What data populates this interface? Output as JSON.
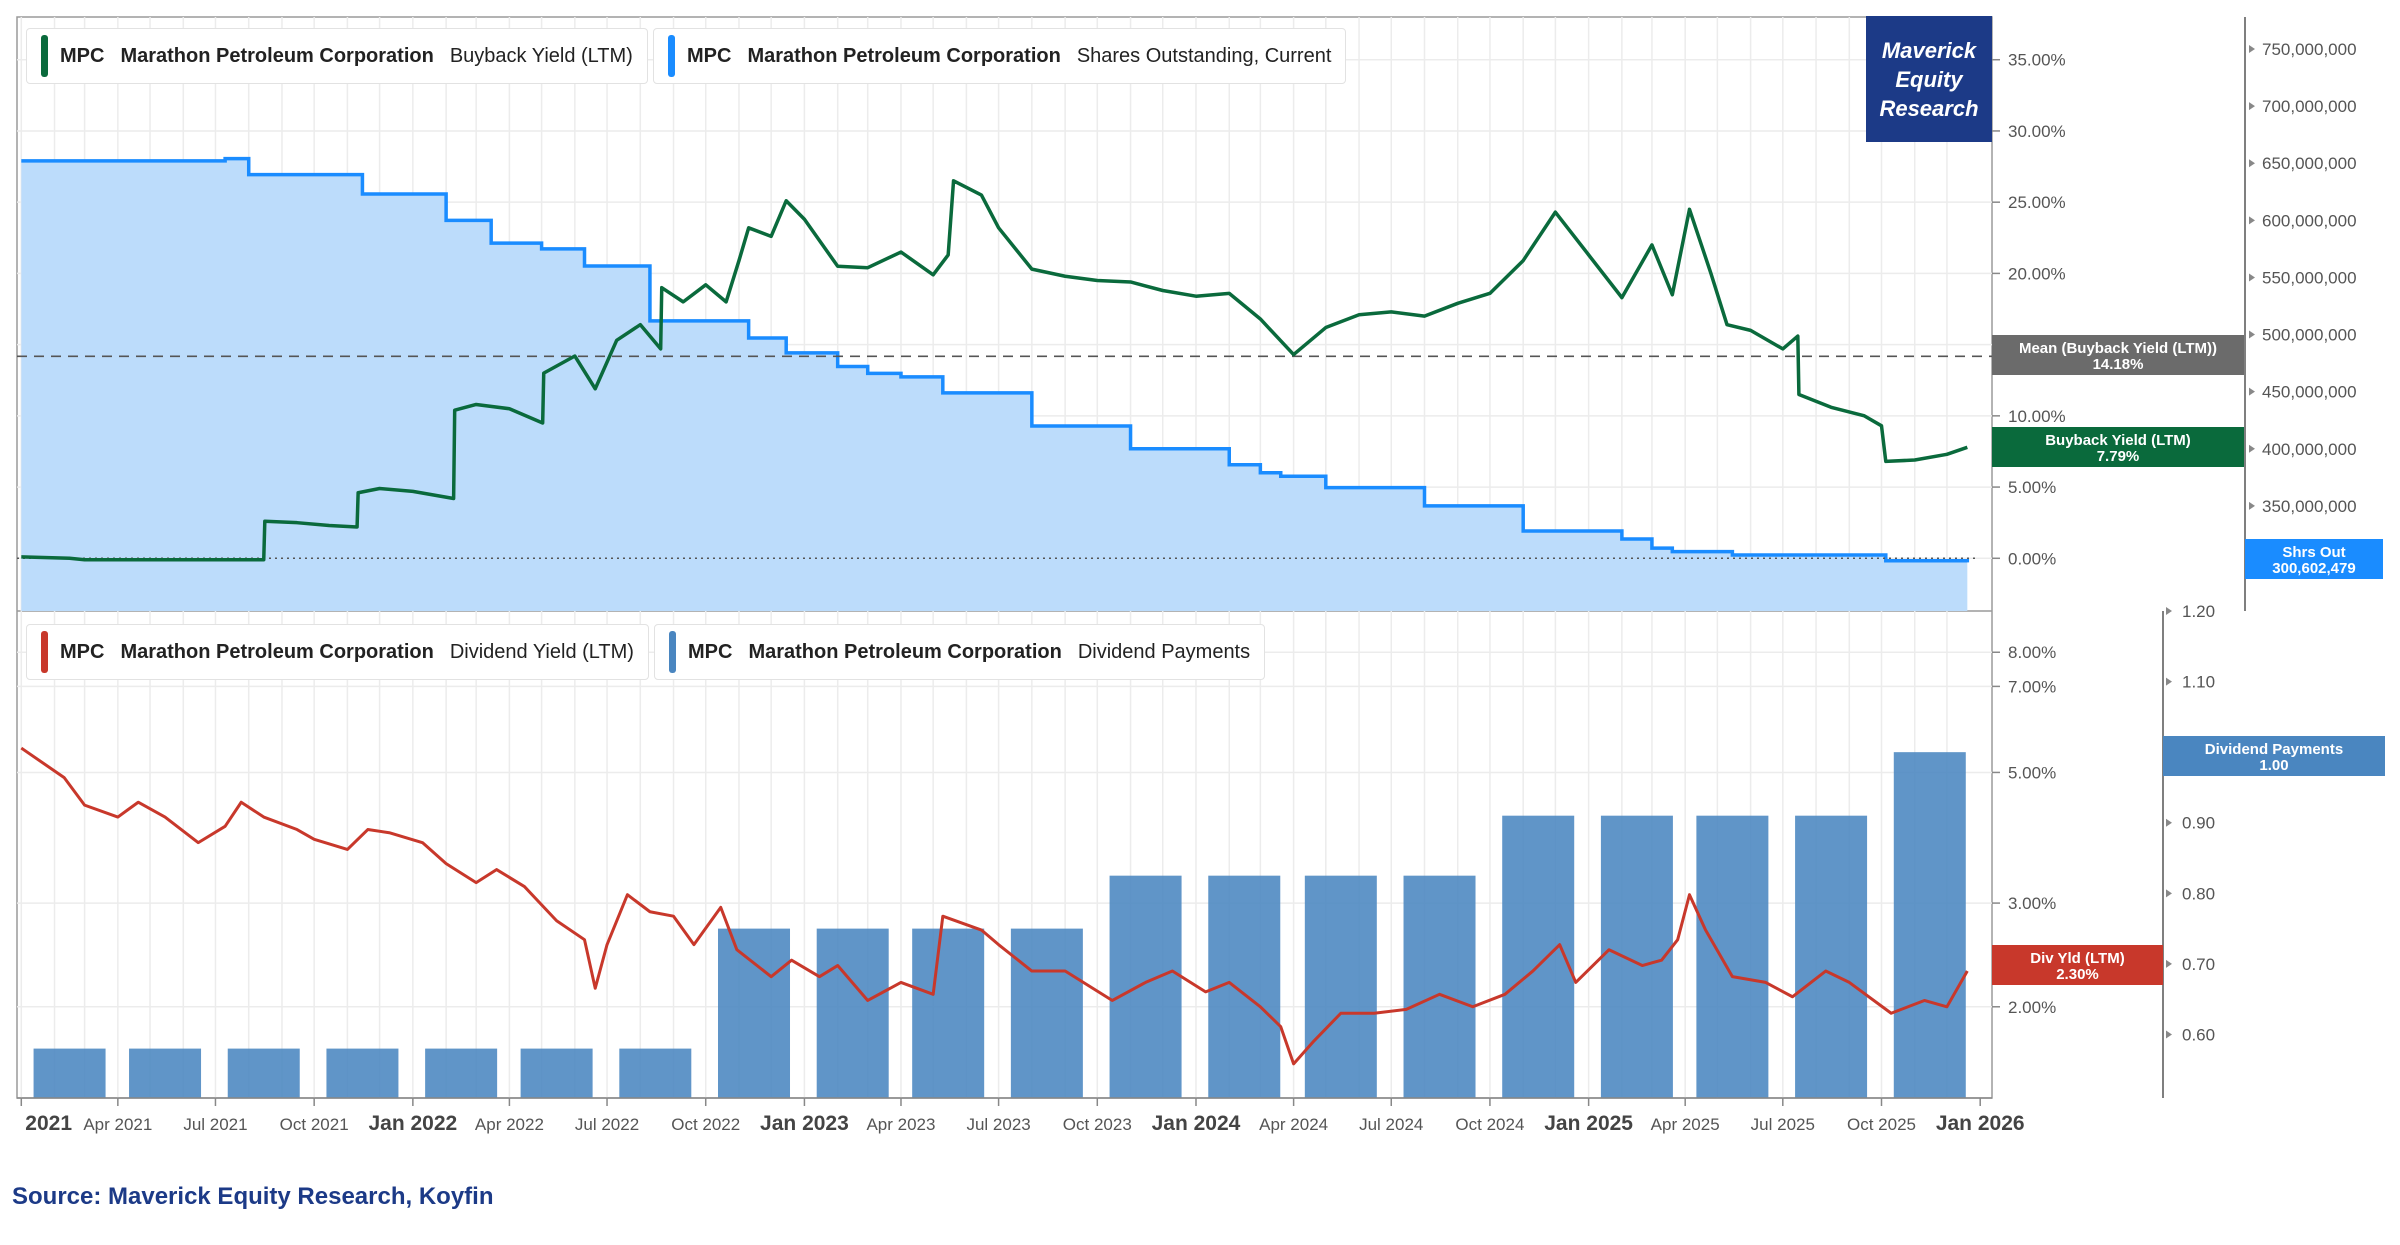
{
  "brand": {
    "line1": "Maverick",
    "line2": "Equity",
    "line3": "Research"
  },
  "source": "Source: Maverick Equity Research, Koyfin",
  "colors": {
    "buyback": "#0a6a3c",
    "shares": "#1a8cff",
    "shares_fill": "#bcdcfb",
    "dividend_yield": "#c8382b",
    "dividend_payments": "#4a86c0",
    "mean": "#6b6b6b",
    "brand": "#1c3a87"
  },
  "legends": {
    "top_left": {
      "ticker": "MPC",
      "company": "Marathon Petroleum Corporation",
      "metric": "Buyback Yield (LTM)"
    },
    "top_right": {
      "ticker": "MPC",
      "company": "Marathon Petroleum Corporation",
      "metric": "Shares Outstanding, Current"
    },
    "bottom_left": {
      "ticker": "MPC",
      "company": "Marathon Petroleum Corporation",
      "metric": "Dividend Yield (LTM)"
    },
    "bottom_right": {
      "ticker": "MPC",
      "company": "Marathon Petroleum Corporation",
      "metric": "Dividend Payments"
    }
  },
  "chart_data": [
    {
      "type": "line",
      "panel": "top",
      "x_axis_labels": [
        "2021",
        "Apr 2021",
        "Jul 2021",
        "Oct 2021",
        "Jan 2022",
        "Apr 2022",
        "Jul 2022",
        "Oct 2022",
        "Jan 2023",
        "Apr 2023",
        "Jul 2023",
        "Oct 2023",
        "Jan 2024",
        "Apr 2024",
        "Jul 2024",
        "Oct 2024",
        "Jan 2025",
        "Apr 2025",
        "Jul 2025",
        "Oct 2025",
        "Jan 2026"
      ],
      "bold_x_labels": [
        "2021",
        "Jan 2022",
        "Jan 2023",
        "Jan 2024",
        "Jan 2025",
        "Jan 2026"
      ],
      "grid": true,
      "series": [
        {
          "name": "Buyback Yield (LTM)",
          "axis": "left-percent",
          "unit": "%",
          "points": [
            [
              "2021-01-01",
              0.1
            ],
            [
              "2021-02-15",
              0.0
            ],
            [
              "2021-03-01",
              -0.1
            ],
            [
              "2021-05-01",
              -0.1
            ],
            [
              "2021-07-01",
              -0.1
            ],
            [
              "2021-08-15",
              -0.1
            ],
            [
              "2021-08-16",
              2.6
            ],
            [
              "2021-09-15",
              2.5
            ],
            [
              "2021-10-15",
              2.3
            ],
            [
              "2021-11-10",
              2.2
            ],
            [
              "2021-11-11",
              4.6
            ],
            [
              "2021-12-01",
              4.9
            ],
            [
              "2022-01-01",
              4.7
            ],
            [
              "2022-02-08",
              4.2
            ],
            [
              "2022-02-09",
              10.4
            ],
            [
              "2022-03-01",
              10.8
            ],
            [
              "2022-04-01",
              10.5
            ],
            [
              "2022-05-02",
              9.5
            ],
            [
              "2022-05-03",
              13.0
            ],
            [
              "2022-06-01",
              14.2
            ],
            [
              "2022-06-20",
              11.9
            ],
            [
              "2022-07-10",
              15.3
            ],
            [
              "2022-08-01",
              16.4
            ],
            [
              "2022-08-20",
              14.7
            ],
            [
              "2022-08-21",
              19.0
            ],
            [
              "2022-09-10",
              18.0
            ],
            [
              "2022-10-01",
              19.2
            ],
            [
              "2022-10-20",
              18.0
            ],
            [
              "2022-11-01",
              20.9
            ],
            [
              "2022-11-10",
              23.2
            ],
            [
              "2022-12-01",
              22.6
            ],
            [
              "2022-12-15",
              25.1
            ],
            [
              "2023-01-01",
              23.8
            ],
            [
              "2023-02-01",
              20.5
            ],
            [
              "2023-03-01",
              20.4
            ],
            [
              "2023-04-01",
              21.5
            ],
            [
              "2023-05-01",
              19.9
            ],
            [
              "2023-05-15",
              21.3
            ],
            [
              "2023-05-20",
              26.5
            ],
            [
              "2023-06-15",
              25.5
            ],
            [
              "2023-07-01",
              23.2
            ],
            [
              "2023-08-01",
              20.3
            ],
            [
              "2023-09-01",
              19.8
            ],
            [
              "2023-10-01",
              19.5
            ],
            [
              "2023-11-01",
              19.4
            ],
            [
              "2023-12-01",
              18.8
            ],
            [
              "2024-01-01",
              18.4
            ],
            [
              "2024-02-01",
              18.6
            ],
            [
              "2024-03-01",
              16.8
            ],
            [
              "2024-04-01",
              14.3
            ],
            [
              "2024-05-01",
              16.2
            ],
            [
              "2024-06-01",
              17.1
            ],
            [
              "2024-07-01",
              17.3
            ],
            [
              "2024-08-01",
              17.0
            ],
            [
              "2024-09-01",
              17.9
            ],
            [
              "2024-10-01",
              18.6
            ],
            [
              "2024-11-01",
              20.9
            ],
            [
              "2024-12-01",
              24.3
            ],
            [
              "2025-01-01",
              21.3
            ],
            [
              "2025-02-01",
              18.3
            ],
            [
              "2025-03-01",
              22.0
            ],
            [
              "2025-03-20",
              18.5
            ],
            [
              "2025-04-05",
              24.5
            ],
            [
              "2025-04-25",
              20.0
            ],
            [
              "2025-05-10",
              16.4
            ],
            [
              "2025-06-01",
              16.0
            ],
            [
              "2025-07-01",
              14.7
            ],
            [
              "2025-07-15",
              15.6
            ],
            [
              "2025-07-16",
              11.5
            ],
            [
              "2025-08-15",
              10.6
            ],
            [
              "2025-09-15",
              10.0
            ],
            [
              "2025-10-01",
              9.3
            ],
            [
              "2025-10-05",
              6.8
            ],
            [
              "2025-11-01",
              6.9
            ],
            [
              "2025-12-01",
              7.3
            ],
            [
              "2025-12-20",
              7.79
            ]
          ]
        },
        {
          "name": "Shares Outstanding, Current",
          "axis": "right-shares",
          "unit": "shares",
          "step": true,
          "points": [
            [
              "2021-01-01",
              652000000
            ],
            [
              "2021-07-10",
              654000000
            ],
            [
              "2021-08-01",
              640000000
            ],
            [
              "2021-11-15",
              623000000
            ],
            [
              "2022-02-01",
              600000000
            ],
            [
              "2022-03-15",
              580000000
            ],
            [
              "2022-05-01",
              575000000
            ],
            [
              "2022-06-10",
              560000000
            ],
            [
              "2022-08-10",
              512000000
            ],
            [
              "2022-11-10",
              497000000
            ],
            [
              "2022-12-15",
              484000000
            ],
            [
              "2023-02-01",
              472000000
            ],
            [
              "2023-03-01",
              466000000
            ],
            [
              "2023-04-01",
              463000000
            ],
            [
              "2023-05-10",
              449000000
            ],
            [
              "2023-08-01",
              420000000
            ],
            [
              "2023-11-01",
              400000000
            ],
            [
              "2024-02-01",
              386000000
            ],
            [
              "2024-03-01",
              379000000
            ],
            [
              "2024-03-20",
              376000000
            ],
            [
              "2024-05-01",
              366000000
            ],
            [
              "2024-08-01",
              350000000
            ],
            [
              "2024-11-01",
              328000000
            ],
            [
              "2025-02-01",
              321000000
            ],
            [
              "2025-03-01",
              313000000
            ],
            [
              "2025-03-20",
              310000000
            ],
            [
              "2025-05-15",
              307000000
            ],
            [
              "2025-10-05",
              302000000
            ],
            [
              "2025-12-20",
              300602479
            ]
          ]
        }
      ],
      "left_axis": {
        "ticks": [
          "0.00%",
          "5.00%",
          "10.00%",
          "15.00%",
          "20.00%",
          "25.00%",
          "30.00%",
          "35.00%"
        ],
        "range": [
          -3.7,
          38.0
        ]
      },
      "right_axis": {
        "ticks": [
          "350,000,000",
          "400,000,000",
          "450,000,000",
          "500,000,000",
          "550,000,000",
          "600,000,000",
          "650,000,000",
          "700,000,000",
          "750,000,000"
        ],
        "range": [
          258000000,
          778000000
        ]
      },
      "reference_line": {
        "label": "Mean (Buyback Yield (LTM))",
        "value": 14.18,
        "value_label": "14.18%"
      },
      "badges": [
        {
          "label": "Buyback Yield (LTM)",
          "value_label": "7.79%"
        },
        {
          "label": "Shrs Out",
          "value_label": "300,602,479"
        }
      ]
    },
    {
      "type": "bar+line",
      "panel": "bottom",
      "series": [
        {
          "name": "Dividend Yield (LTM)",
          "axis": "left-percent-log",
          "unit": "%",
          "points": [
            [
              "2021-01-01",
              5.5
            ],
            [
              "2021-02-10",
              4.9
            ],
            [
              "2021-03-01",
              4.4
            ],
            [
              "2021-04-01",
              4.2
            ],
            [
              "2021-04-20",
              4.45
            ],
            [
              "2021-05-15",
              4.2
            ],
            [
              "2021-06-15",
              3.8
            ],
            [
              "2021-07-10",
              4.05
            ],
            [
              "2021-07-25",
              4.45
            ],
            [
              "2021-08-15",
              4.2
            ],
            [
              "2021-09-15",
              4.0
            ],
            [
              "2021-10-01",
              3.85
            ],
            [
              "2021-11-01",
              3.7
            ],
            [
              "2021-11-20",
              4.0
            ],
            [
              "2021-12-10",
              3.95
            ],
            [
              "2022-01-10",
              3.8
            ],
            [
              "2022-02-01",
              3.5
            ],
            [
              "2022-03-01",
              3.25
            ],
            [
              "2022-03-20",
              3.42
            ],
            [
              "2022-04-15",
              3.2
            ],
            [
              "2022-05-15",
              2.8
            ],
            [
              "2022-06-10",
              2.6
            ],
            [
              "2022-06-20",
              2.15
            ],
            [
              "2022-07-01",
              2.55
            ],
            [
              "2022-07-20",
              3.1
            ],
            [
              "2022-08-10",
              2.9
            ],
            [
              "2022-09-01",
              2.85
            ],
            [
              "2022-09-20",
              2.55
            ],
            [
              "2022-10-15",
              2.95
            ],
            [
              "2022-10-30",
              2.5
            ],
            [
              "2022-12-01",
              2.25
            ],
            [
              "2022-12-20",
              2.4
            ],
            [
              "2023-01-15",
              2.25
            ],
            [
              "2023-02-01",
              2.35
            ],
            [
              "2023-03-01",
              2.05
            ],
            [
              "2023-04-01",
              2.2
            ],
            [
              "2023-05-01",
              2.1
            ],
            [
              "2023-05-10",
              2.85
            ],
            [
              "2023-06-15",
              2.7
            ],
            [
              "2023-07-01",
              2.55
            ],
            [
              "2023-08-01",
              2.3
            ],
            [
              "2023-09-01",
              2.3
            ],
            [
              "2023-10-15",
              2.05
            ],
            [
              "2023-11-15",
              2.2
            ],
            [
              "2023-12-10",
              2.3
            ],
            [
              "2024-01-10",
              2.12
            ],
            [
              "2024-02-01",
              2.2
            ],
            [
              "2024-03-01",
              2.0
            ],
            [
              "2024-03-20",
              1.85
            ],
            [
              "2024-04-01",
              1.6
            ],
            [
              "2024-04-20",
              1.75
            ],
            [
              "2024-05-15",
              1.95
            ],
            [
              "2024-06-15",
              1.95
            ],
            [
              "2024-07-15",
              1.98
            ],
            [
              "2024-08-15",
              2.1
            ],
            [
              "2024-09-15",
              2.0
            ],
            [
              "2024-10-15",
              2.1
            ],
            [
              "2024-11-10",
              2.3
            ],
            [
              "2024-12-05",
              2.55
            ],
            [
              "2024-12-20",
              2.2
            ],
            [
              "2025-01-20",
              2.5
            ],
            [
              "2025-02-20",
              2.35
            ],
            [
              "2025-03-10",
              2.4
            ],
            [
              "2025-03-25",
              2.6
            ],
            [
              "2025-04-05",
              3.1
            ],
            [
              "2025-04-20",
              2.7
            ],
            [
              "2025-05-15",
              2.25
            ],
            [
              "2025-06-15",
              2.2
            ],
            [
              "2025-07-10",
              2.08
            ],
            [
              "2025-08-10",
              2.3
            ],
            [
              "2025-09-01",
              2.2
            ],
            [
              "2025-10-10",
              1.95
            ],
            [
              "2025-11-10",
              2.05
            ],
            [
              "2025-12-01",
              2.0
            ],
            [
              "2025-12-20",
              2.3
            ]
          ]
        },
        {
          "name": "Dividend Payments",
          "axis": "right-dollar",
          "type": "bar",
          "categories": [
            "Q1 2021",
            "Q2 2021",
            "Q3 2021",
            "Q4 2021",
            "Q1 2022",
            "Q2 2022",
            "Q3 2022",
            "Q4 2022",
            "Q1 2023",
            "Q2 2023",
            "Q3 2023",
            "Q4 2023",
            "Q1 2024",
            "Q2 2024",
            "Q3 2024",
            "Q4 2024",
            "Q1 2025",
            "Q2 2025",
            "Q3 2025",
            "Q4 2025"
          ],
          "dates": [
            "2021-02-15",
            "2021-05-15",
            "2021-08-15",
            "2021-11-15",
            "2022-02-15",
            "2022-05-15",
            "2022-08-15",
            "2022-11-15",
            "2023-02-15",
            "2023-05-15",
            "2023-08-15",
            "2023-11-15",
            "2024-02-15",
            "2024-05-15",
            "2024-08-15",
            "2024-11-15",
            "2025-02-15",
            "2025-05-15",
            "2025-08-15",
            "2025-11-15"
          ],
          "values": [
            0.58,
            0.58,
            0.58,
            0.58,
            0.58,
            0.58,
            0.58,
            0.75,
            0.75,
            0.75,
            0.75,
            0.825,
            0.825,
            0.825,
            0.825,
            0.91,
            0.91,
            0.91,
            0.91,
            1.0
          ]
        }
      ],
      "left_axis": {
        "ticks": [
          "2.00%",
          "3.00%",
          "5.00%",
          "7.00%",
          "8.00%"
        ],
        "scale": "log",
        "range": [
          1.4,
          9.4
        ]
      },
      "right_axis": {
        "ticks": [
          "0.60",
          "0.70",
          "0.80",
          "0.90",
          "1.00",
          "1.10",
          "1.20"
        ],
        "range": [
          0.51,
          1.2
        ]
      },
      "badges": [
        {
          "label": "Div Yld (LTM)",
          "value_label": "2.30%"
        },
        {
          "label": "Dividend Payments",
          "value_label": "1.00"
        }
      ]
    }
  ]
}
